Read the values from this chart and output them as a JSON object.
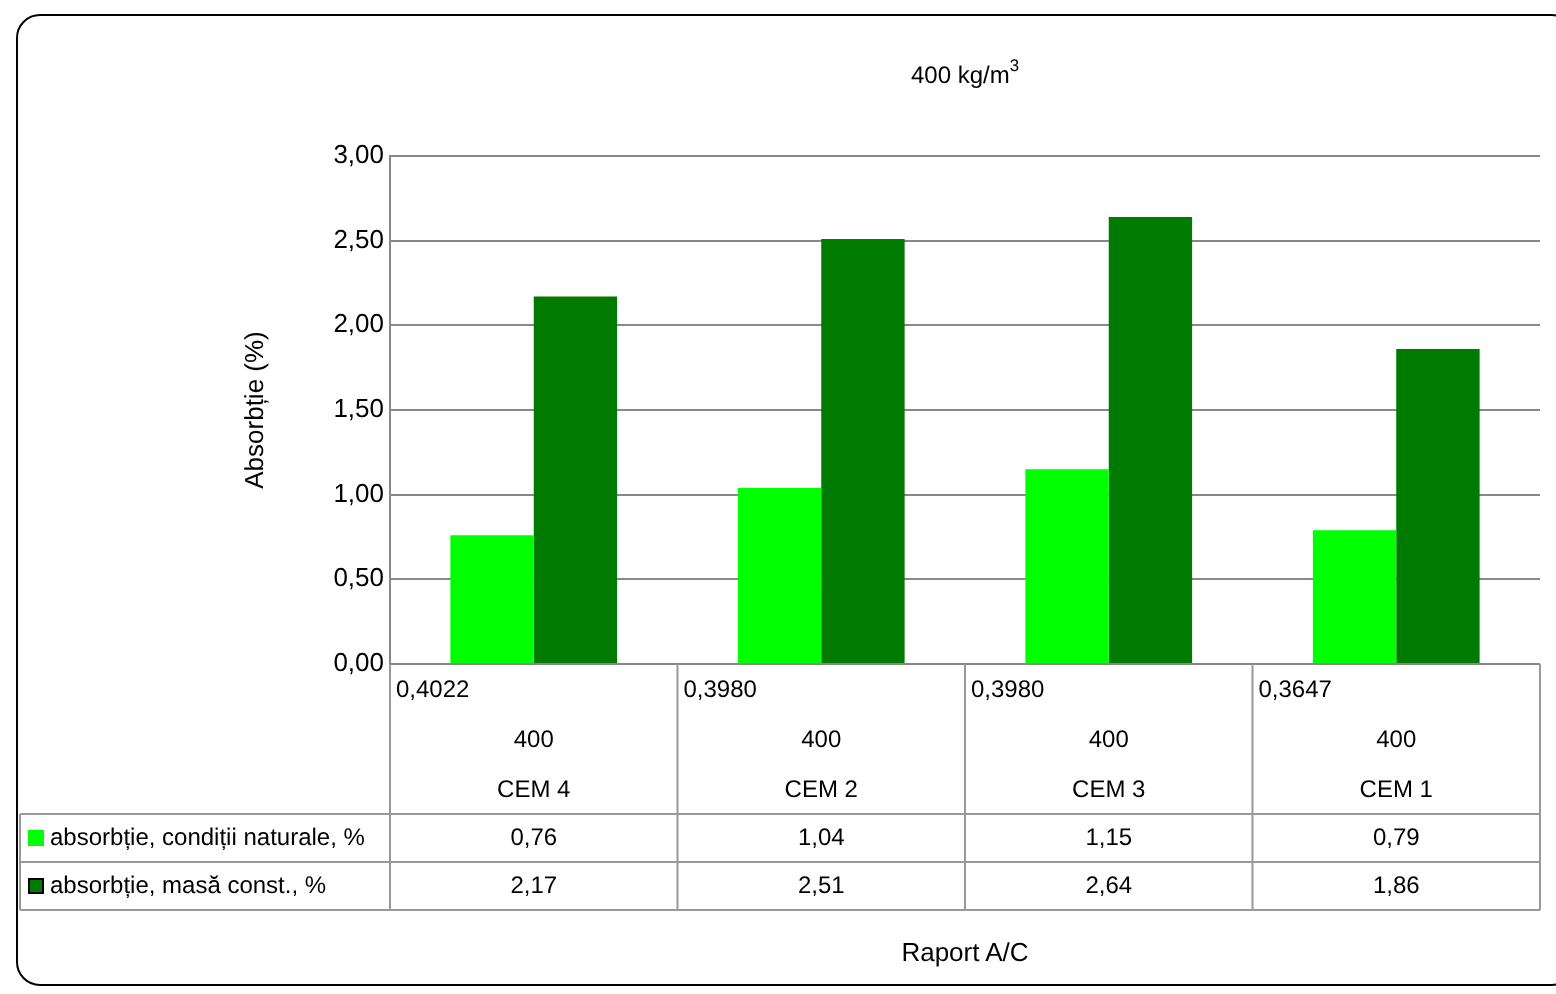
{
  "chart_data": {
    "type": "bar",
    "title": "400 kg/m$^{3}$",
    "annotations": [
      "Raport A/C"
    ],
    "ylabel": "Absorbție (%)",
    "categories": [
      "0,4022\n400\nCEM 4",
      "0,3980\n400\nCEM 2",
      "0,3980\n400\nCEM 3",
      "0,3647\n400\nCEM 1"
    ],
    "series": [
      {
        "name": "absorbție, condiții naturale, %",
        "color": "#00ff00",
        "values": [
          0.76,
          1.04,
          1.15,
          0.79
        ],
        "value_labels": [
          "0,76",
          "1,04",
          "1,15",
          "0,79"
        ]
      },
      {
        "name": "absorbție, masă const., %",
        "color": "#007a00",
        "values": [
          2.17,
          2.51,
          2.64,
          1.86
        ],
        "value_labels": [
          "2,17",
          "2,51",
          "2,64",
          "1,86"
        ]
      }
    ],
    "ylim": [
      0,
      3
    ],
    "yticks": [
      {
        "value": 0,
        "label": "0,00"
      },
      {
        "value": 0.5,
        "label": "0,50"
      },
      {
        "value": 1,
        "label": "1,00"
      },
      {
        "value": 1.5,
        "label": "1,50"
      },
      {
        "value": 2,
        "label": "2,00"
      },
      {
        "value": 2.5,
        "label": "2,50"
      },
      {
        "value": 3,
        "label": "3,00"
      }
    ],
    "grid": "y",
    "legend": "bottom"
  }
}
